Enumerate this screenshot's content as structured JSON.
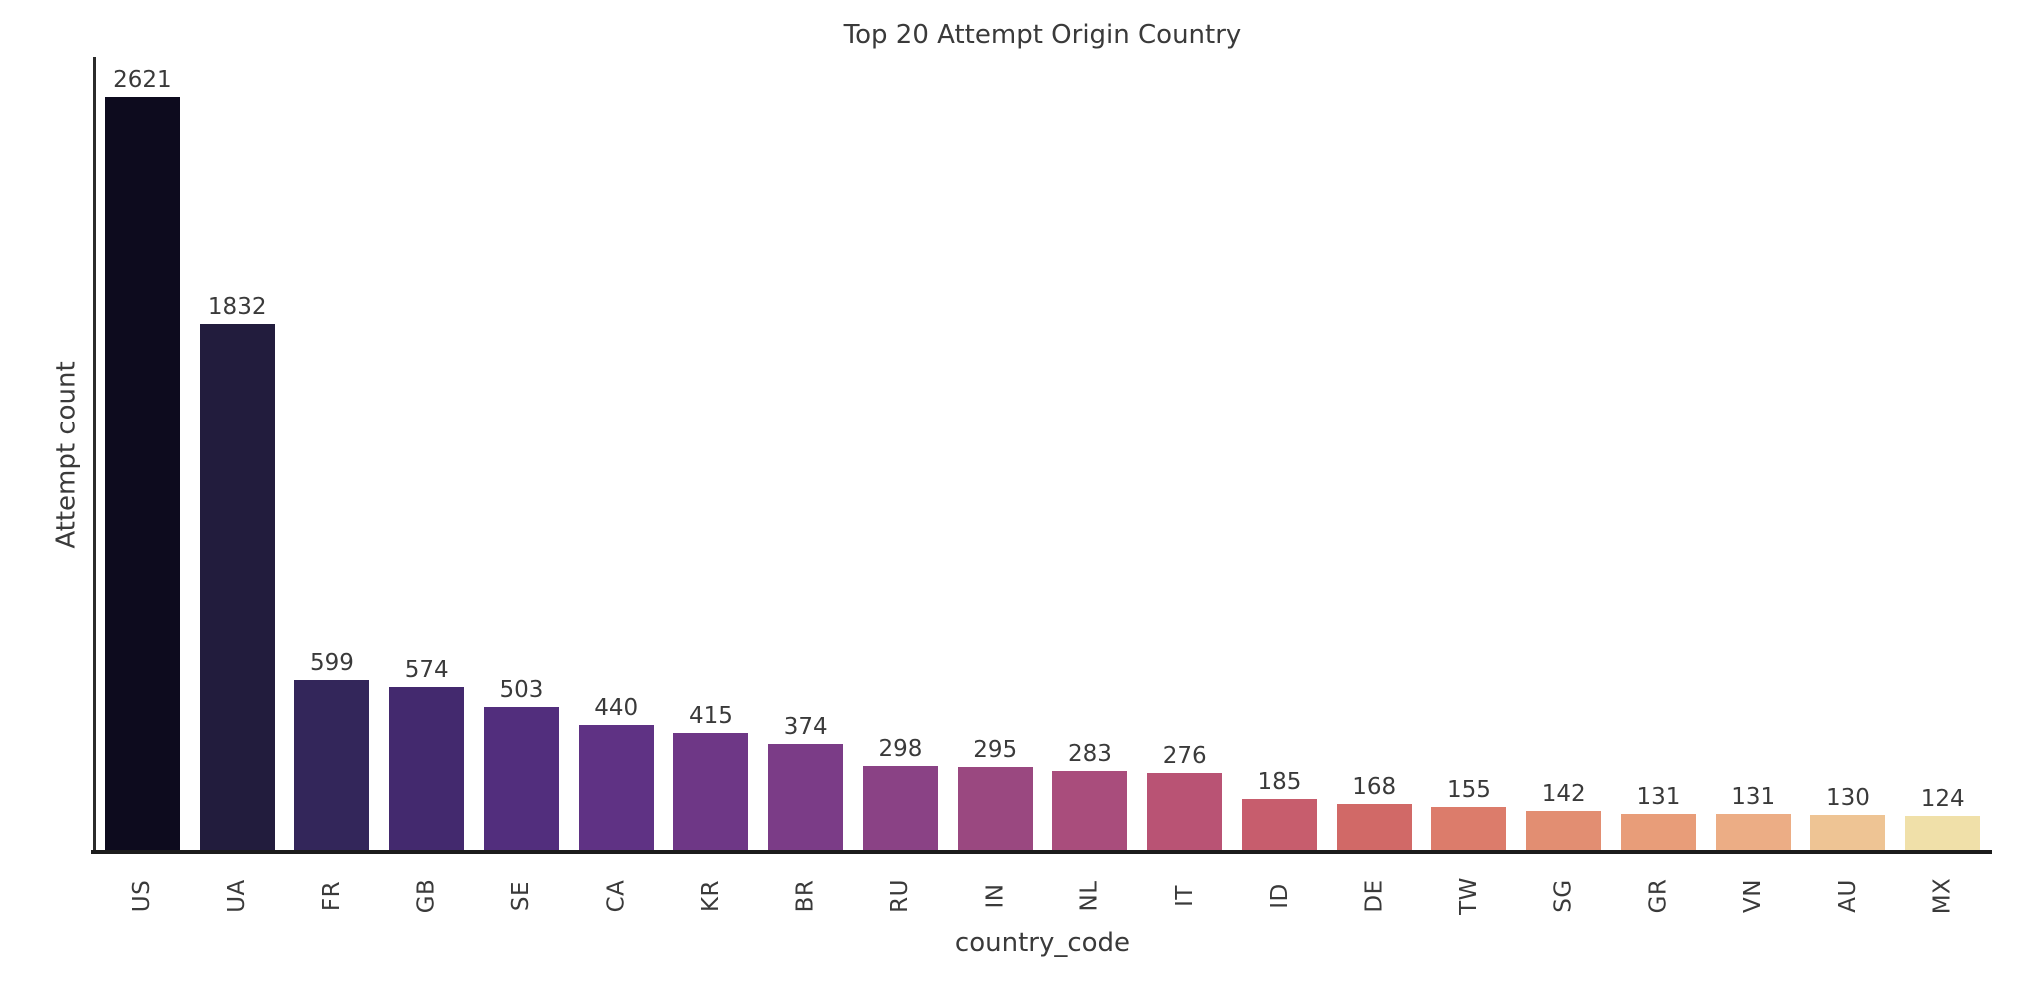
{
  "chart_data": {
    "type": "bar",
    "title": "Top 20 Attempt Origin Country",
    "xlabel": "country_code",
    "ylabel": "Attempt count",
    "categories": [
      "US",
      "UA",
      "FR",
      "GB",
      "SE",
      "CA",
      "KR",
      "BR",
      "RU",
      "IN",
      "NL",
      "IT",
      "ID",
      "DE",
      "TW",
      "SG",
      "GR",
      "VN",
      "AU",
      "MX"
    ],
    "values": [
      2621,
      1832,
      599,
      574,
      503,
      440,
      415,
      374,
      298,
      295,
      283,
      276,
      185,
      168,
      155,
      142,
      131,
      131,
      130,
      124
    ],
    "bar_colors": [
      "#0d0b1e",
      "#221c3d",
      "#33265a",
      "#43296e",
      "#522e7d",
      "#5f3284",
      "#6e3786",
      "#7b3c87",
      "#8a4285",
      "#9a4880",
      "#a94d7c",
      "#b95374",
      "#c75d6d",
      "#d16967",
      "#dc7c6b",
      "#e28e72",
      "#e89d79",
      "#ecad85",
      "#eec494",
      "#f0e0a9"
    ],
    "ylim": [
      0,
      2760
    ],
    "grid": false,
    "legend": false,
    "value_labels_shown": true,
    "tick_label_rotation_deg": 90
  },
  "colors": {
    "background": "#ffffff",
    "text": "#3a3a3a",
    "axis_line": "#1c1c1c"
  }
}
